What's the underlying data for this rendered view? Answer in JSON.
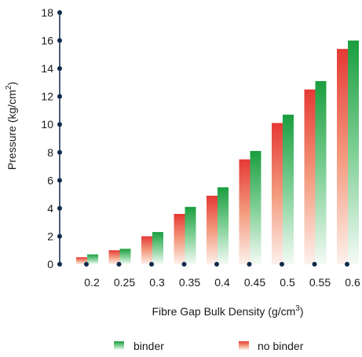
{
  "chart_data": {
    "type": "bar",
    "categories": [
      "0.2",
      "0.25",
      "0.3",
      "0.35",
      "0.4",
      "0.45",
      "0.5",
      "0.55",
      "0.6"
    ],
    "series": [
      {
        "name": "no binder",
        "values": [
          0.5,
          1.0,
          2.0,
          3.6,
          4.9,
          7.5,
          10.1,
          12.5,
          15.4
        ]
      },
      {
        "name": "binder",
        "values": [
          0.7,
          1.1,
          2.3,
          4.1,
          5.5,
          8.1,
          10.7,
          13.1,
          16.0
        ]
      }
    ],
    "xlabel": "Fibre Gap Bulk Density (g/cm",
    "xlabel_sup": "3",
    "xlabel_end": ")",
    "ylabel": "Pressure (kg/cm",
    "ylabel_sup": "2",
    "ylabel_end": ")",
    "ylim": [
      0,
      18
    ],
    "yticks": [
      0,
      2,
      4,
      6,
      8,
      10,
      12,
      14,
      16,
      18
    ],
    "legend_position": "bottom",
    "colors": {
      "binder_top": "#1a9e3f",
      "no_binder_top": "#e53935",
      "axis": "#0f2a4a"
    }
  }
}
